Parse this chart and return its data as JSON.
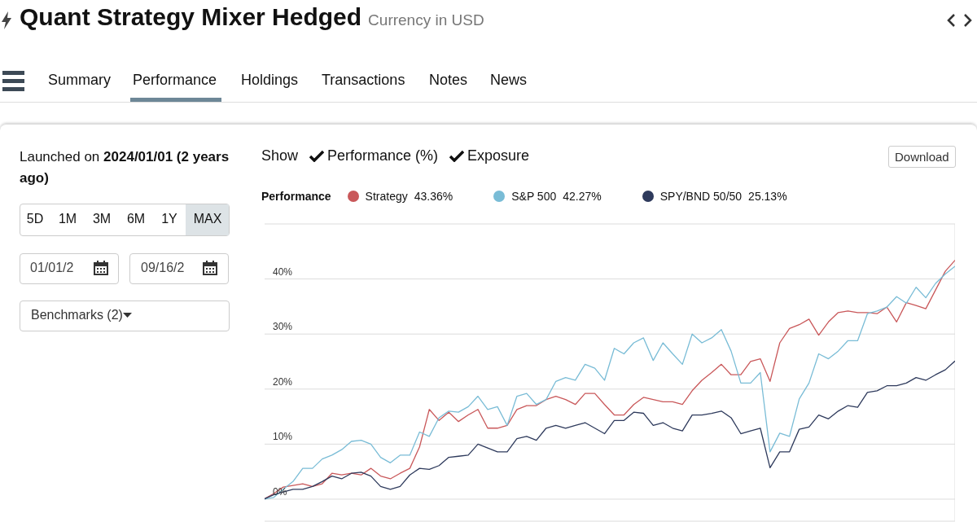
{
  "chart_data": {
    "type": "line",
    "title": "Quant Strategy Mixer Hedged",
    "subtitle": "Currency in USD",
    "legend_title": "Performance",
    "legend": "top left",
    "grid": true,
    "categories": [
      null,
      null,
      null,
      null,
      null,
      null,
      null,
      null,
      null,
      null,
      null,
      null,
      null,
      null,
      null,
      null,
      null,
      null,
      null,
      null,
      null,
      null,
      null,
      null,
      null,
      null,
      null,
      null,
      null,
      null,
      null,
      null,
      null,
      null,
      null,
      null,
      null,
      null,
      null,
      null,
      null,
      null,
      null,
      null,
      null,
      null,
      null,
      null,
      null,
      null,
      null,
      null,
      null,
      null,
      null,
      null,
      null,
      null,
      null,
      null,
      null,
      null,
      null,
      null,
      null,
      null,
      null,
      null,
      null,
      null,
      null,
      null
    ],
    "series": [
      {
        "name": "Strategy",
        "color": "#c9585a",
        "values": [
          0,
          1,
          2.2,
          2.5,
          2.8,
          2.3,
          2.8,
          4.7,
          4.4,
          4.7,
          4.4,
          5.6,
          4.2,
          3.7,
          4.7,
          5.6,
          9.5,
          16.3,
          14.3,
          15.8,
          14.1,
          15.3,
          16.3,
          12.9,
          12.9,
          13.4,
          16.3,
          17,
          17,
          18.1,
          18.7,
          18.1,
          17.2,
          19.2,
          19.2,
          17.2,
          15.3,
          15.3,
          17.2,
          18.5,
          18.1,
          17.7,
          17.7,
          17.2,
          19.7,
          21.6,
          23,
          24.5,
          22.6,
          22.6,
          25,
          25.5,
          21.4,
          28.4,
          31,
          31.7,
          32.7,
          29.8,
          32.2,
          33.9,
          34.2,
          33.9,
          33.9,
          33.7,
          34.9,
          32.2,
          35.7,
          35.2,
          34.6,
          38,
          41.4,
          43.4
        ]
      },
      {
        "name": "S&P 500",
        "color": "#79bcd6",
        "values": [
          0,
          0.3,
          1.8,
          3.2,
          5.6,
          5.6,
          7.3,
          8,
          9,
          10.5,
          10.7,
          10,
          7.6,
          6.6,
          8,
          8,
          12.2,
          11.4,
          14.8,
          16,
          15.8,
          16.8,
          18.7,
          16.3,
          16.8,
          13.4,
          18.7,
          19.2,
          17.2,
          18.1,
          21.4,
          22.1,
          21.6,
          24.5,
          23.8,
          21.6,
          27.4,
          26.4,
          28.4,
          29.3,
          25.2,
          28.4,
          26.4,
          24.5,
          30,
          28.4,
          29.3,
          30.8,
          26.9,
          21.1,
          21.1,
          23,
          8.6,
          12,
          11.4,
          18.2,
          21.1,
          26.4,
          25.5,
          26.9,
          28.8,
          28.8,
          33.7,
          34.2,
          34.9,
          36.8,
          35.6,
          38.5,
          36.6,
          39.2,
          40.9,
          42.3
        ]
      },
      {
        "name": "SPY/BND 50/50",
        "color": "#2e3a5c",
        "values": [
          0,
          0.8,
          1.3,
          1.8,
          1.8,
          2.3,
          3.2,
          4.2,
          3.7,
          4.7,
          4.9,
          4.2,
          2.3,
          1.8,
          2.3,
          4.4,
          5.6,
          5.4,
          6.1,
          7.6,
          7.8,
          8,
          10,
          9.3,
          8.6,
          8.6,
          11,
          11.4,
          10.7,
          12.9,
          13.4,
          12.9,
          13.4,
          13.9,
          12.9,
          11.9,
          14.3,
          14.3,
          15.8,
          15.6,
          13.4,
          13.9,
          12.9,
          12.4,
          15.3,
          15.3,
          15.6,
          16,
          14.8,
          11.9,
          12.4,
          12.9,
          5.7,
          8.6,
          8.6,
          12.7,
          13.1,
          15.3,
          14.6,
          16,
          17,
          16.7,
          19.4,
          19.7,
          20.6,
          20.6,
          21.1,
          22.1,
          21.6,
          22.6,
          23.5,
          25.1
        ]
      }
    ],
    "ylim": [
      -4,
      50
    ],
    "yticks": [
      {
        "value": 0,
        "label": "0%"
      },
      {
        "value": 10,
        "label": "10%"
      },
      {
        "value": 20,
        "label": "20%"
      },
      {
        "value": 30,
        "label": "30%"
      },
      {
        "value": 40,
        "label": "40%"
      },
      {
        "value": 50,
        "label": null
      }
    ],
    "annotations": [
      "43.36%",
      "42.27%",
      "25.13%",
      "Summary",
      "Performance",
      "Holdings",
      "Transactions",
      "Notes",
      "News",
      "Launched on",
      "2024/01/01 (2 years ago)",
      "5D",
      "1M",
      "3M",
      "6M",
      "1Y",
      "MAX",
      "01/01/2",
      "09/16/2",
      "Benchmarks (2)",
      "Show",
      "Performance (%)",
      "Exposure",
      "Download"
    ]
  }
}
